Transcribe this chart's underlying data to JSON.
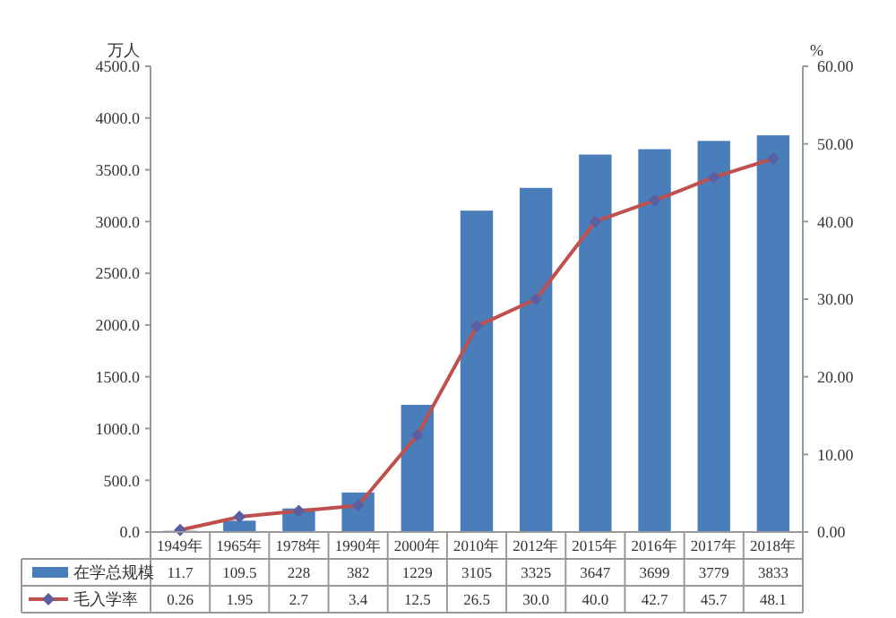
{
  "chart_data": {
    "type": "bar",
    "categories": [
      "1949年",
      "1965年",
      "1978年",
      "1990年",
      "2000年",
      "2010年",
      "2012年",
      "2015年",
      "2016年",
      "2017年",
      "2018年"
    ],
    "ylabel": "万人",
    "y2label": "%",
    "ylim": [
      0,
      4500
    ],
    "yticks": [
      {
        "value": 0,
        "label": "0.0"
      },
      {
        "value": 500,
        "label": "500.0"
      },
      {
        "value": 1000,
        "label": "1000.0"
      },
      {
        "value": 1500,
        "label": "1500.0"
      },
      {
        "value": 2000,
        "label": "2000.0"
      },
      {
        "value": 2500,
        "label": "2500.0"
      },
      {
        "value": 3000,
        "label": "3000.0"
      },
      {
        "value": 3500,
        "label": "3500.0"
      },
      {
        "value": 4000,
        "label": "4000.0"
      },
      {
        "value": 4500,
        "label": "4500.0"
      }
    ],
    "y2lim": [
      0,
      60
    ],
    "y2ticks": [
      {
        "value": 0,
        "label": "0.00"
      },
      {
        "value": 10,
        "label": "10.00"
      },
      {
        "value": 20,
        "label": "20.00"
      },
      {
        "value": 30,
        "label": "30.00"
      },
      {
        "value": 40,
        "label": "40.00"
      },
      {
        "value": 50,
        "label": "50.00"
      },
      {
        "value": 60,
        "label": "60.00"
      }
    ],
    "series": [
      {
        "name": "在学总规模",
        "color": "#4a7ebb",
        "values": [
          11.7,
          109.5,
          228,
          382,
          1229,
          3105,
          3325,
          3647,
          3699,
          3779,
          3833
        ],
        "value_labels": [
          "11.7",
          "109.5",
          "228",
          "382",
          "1229",
          "3105",
          "3325",
          "3647",
          "3699",
          "3779",
          "3833"
        ]
      },
      {
        "name": "毛入学率",
        "type": "line",
        "axis": "y2",
        "color": "#c0504d",
        "marker": "diamond",
        "values": [
          0.26,
          1.95,
          2.7,
          3.4,
          12.5,
          26.5,
          30.0,
          40.0,
          42.7,
          45.7,
          48.1
        ],
        "value_labels": [
          "0.26",
          "1.95",
          "2.7",
          "3.4",
          "12.5",
          "26.5",
          "30.0",
          "40.0",
          "42.7",
          "45.7",
          "48.1"
        ]
      }
    ],
    "data_labels": true,
    "legend": "bottom",
    "grid": false
  }
}
